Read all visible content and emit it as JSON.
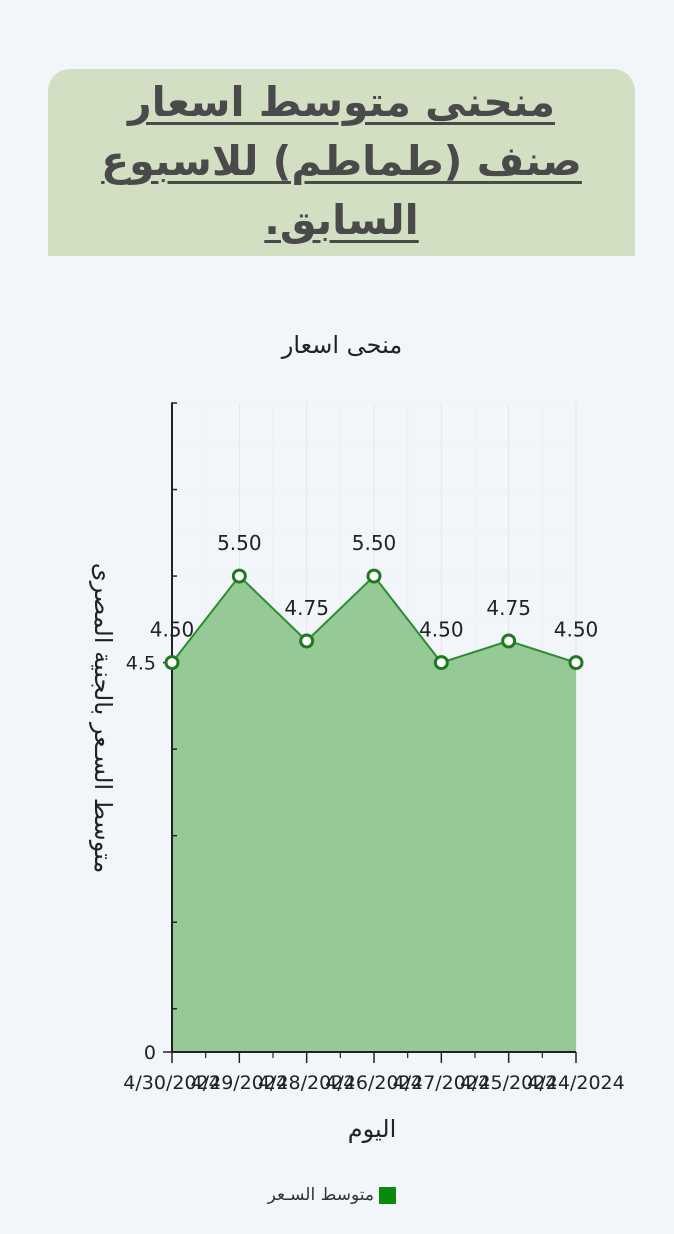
{
  "header": {
    "title": "منحنى متوسط اسعار صنف (طماطم) للاسبوع السابق."
  },
  "colors": {
    "header_bg": "#d2dfc2",
    "area_fill": "#95c995",
    "line": "#2e8b2e",
    "marker_edge": "#1f7a1f",
    "legend_swatch": "#0a8a0a"
  },
  "chart_data": {
    "type": "area",
    "title": "منحى اسعار",
    "xlabel": "اليوم",
    "ylabel": "متوسط السـعر بالجنية المصرى",
    "x": [
      "4/30/2024",
      "4/29/2024",
      "4/28/2024",
      "4/26/2024",
      "4/27/2024",
      "4/25/2024",
      "4/24/2024"
    ],
    "series": [
      {
        "name": "متوسط السـعر",
        "values": [
          4.5,
          5.5,
          4.75,
          5.5,
          4.5,
          4.75,
          4.5
        ]
      }
    ],
    "data_labels": [
      "4.50",
      "5.50",
      "4.75",
      "5.50",
      "4.50",
      "4.75",
      "4.50"
    ],
    "yticks": [
      {
        "value": 0,
        "label": "0"
      },
      {
        "value": 4.5,
        "label": "4.5"
      }
    ],
    "ylim": [
      0,
      7.5
    ],
    "grid": true,
    "legend_position": "bottom"
  }
}
